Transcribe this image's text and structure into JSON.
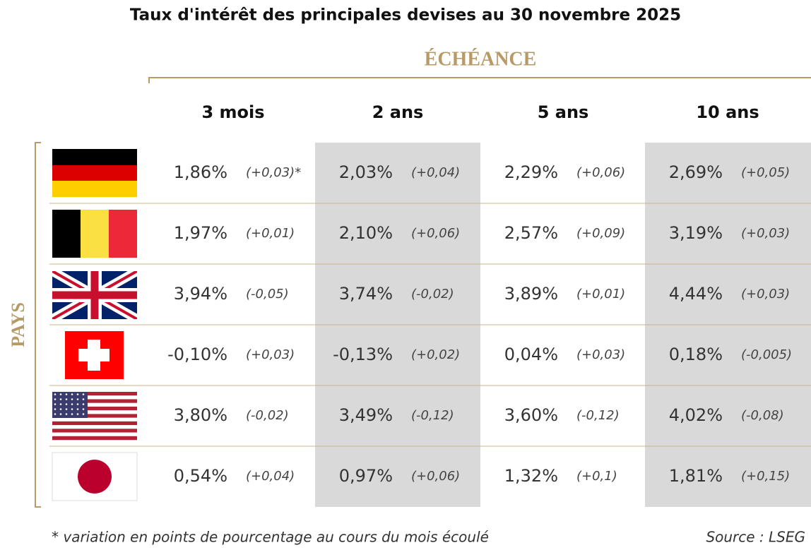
{
  "title": "Taux d'intérêt des principales devises au 30 novembre 2025",
  "header": {
    "group": "ÉCHÉANCE",
    "row_group": "PAYS"
  },
  "table": {
    "columns": [
      "3 mois",
      "2 ans",
      "5 ans",
      "10 ans"
    ],
    "rows": [
      [
        {
          "rate": "1,86%",
          "change": "(+0,03)*"
        },
        {
          "rate": "2,03%",
          "change": "(+0,04)"
        },
        {
          "rate": "2,29%",
          "change": "(+0,06)"
        },
        {
          "rate": "2,69%",
          "change": "(+0,05)"
        }
      ],
      [
        {
          "rate": "1,97%",
          "change": "(+0,01)"
        },
        {
          "rate": "2,10%",
          "change": "(+0,06)"
        },
        {
          "rate": "2,57%",
          "change": "(+0,09)"
        },
        {
          "rate": "3,19%",
          "change": "(+0,03)"
        }
      ],
      [
        {
          "rate": "3,94%",
          "change": "(-0,05)"
        },
        {
          "rate": "3,74%",
          "change": "(-0,02)"
        },
        {
          "rate": "3,89%",
          "change": "(+0,01)"
        },
        {
          "rate": "4,44%",
          "change": "(+0,03)"
        }
      ],
      [
        {
          "rate": "-0,10%",
          "change": "(+0,03)"
        },
        {
          "rate": "-0,13%",
          "change": "(+0,02)"
        },
        {
          "rate": "0,04%",
          "change": "(+0,03)"
        },
        {
          "rate": "0,18%",
          "change": "(-0,005)"
        }
      ],
      [
        {
          "rate": "3,80%",
          "change": "(-0,02)"
        },
        {
          "rate": "3,49%",
          "change": "(-0,12)"
        },
        {
          "rate": "3,60%",
          "change": "(-0,12)"
        },
        {
          "rate": "4,02%",
          "change": "(-0,08)"
        }
      ],
      [
        {
          "rate": "0,54%",
          "change": "(+0,04)"
        },
        {
          "rate": "0,97%",
          "change": "(+0,06)"
        },
        {
          "rate": "1,32%",
          "change": "(+0,1)"
        },
        {
          "rate": "1,81%",
          "change": "(+0,15)"
        }
      ]
    ]
  },
  "footnote": "* variation en points de pourcentage au cours du mois écoulé",
  "source": "Source : LSEG"
}
